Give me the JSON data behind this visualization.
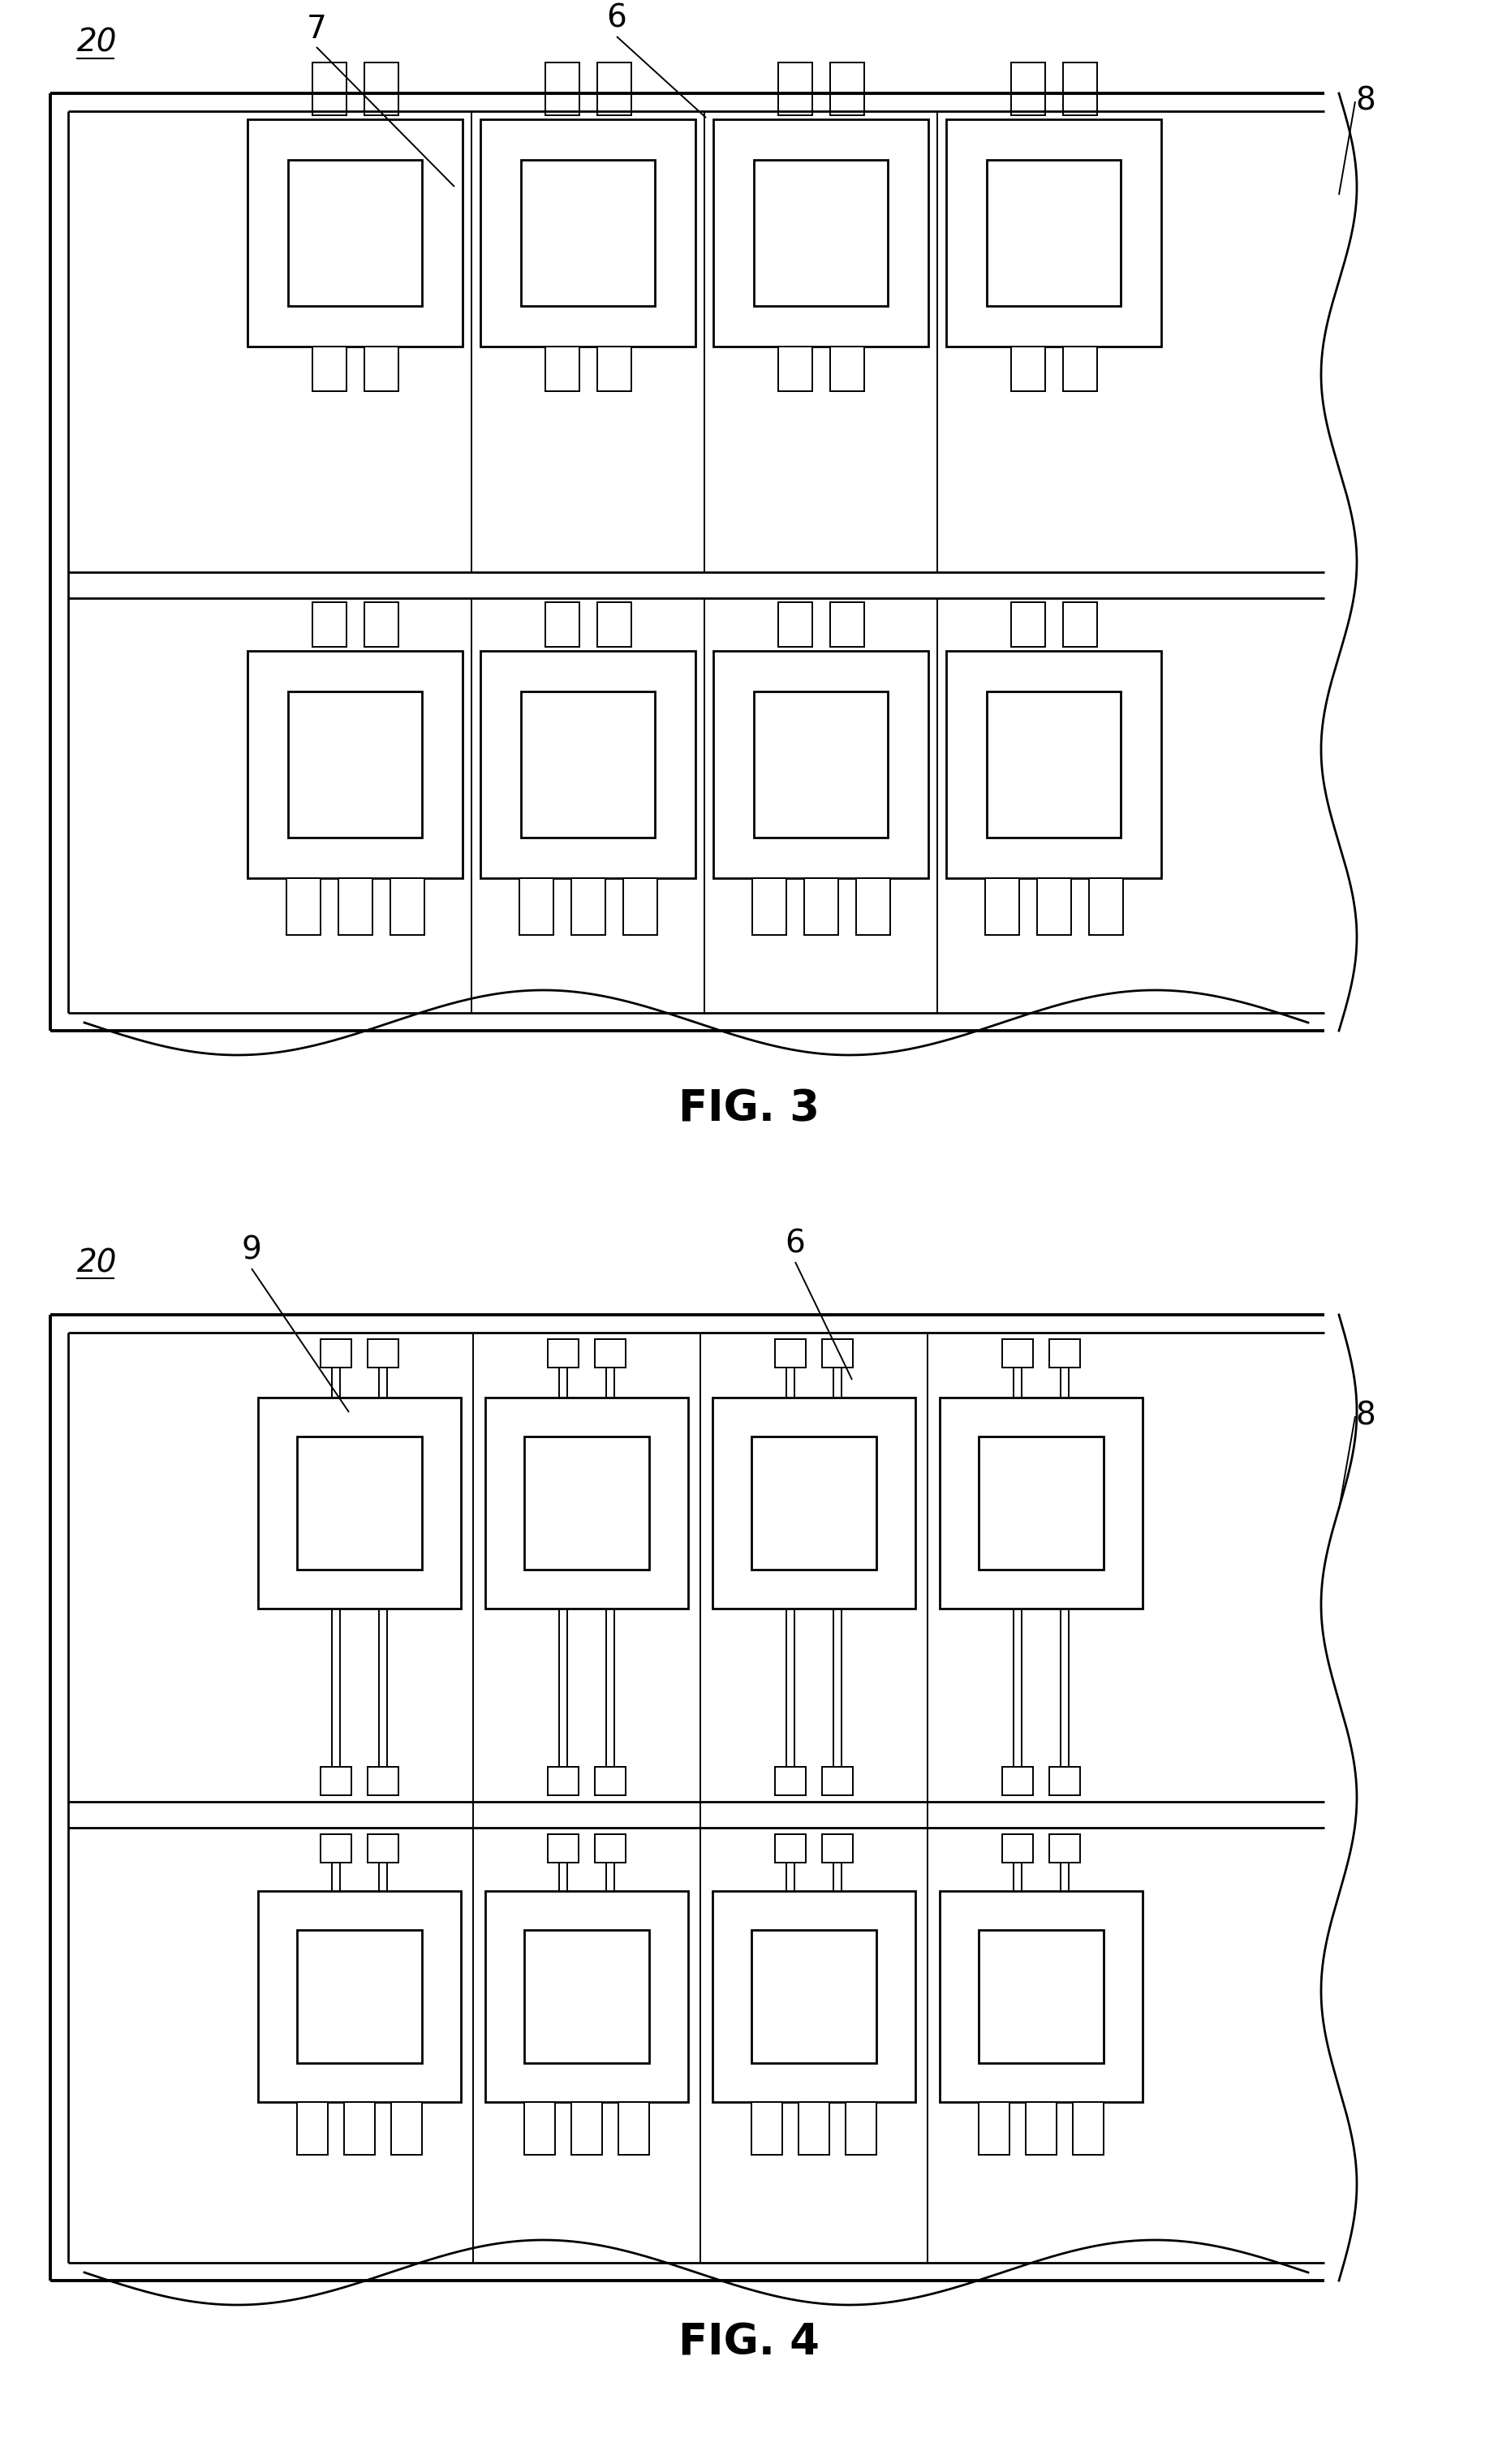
{
  "fig_width": 18.46,
  "fig_height": 30.36,
  "bg_color": "#ffffff",
  "line_color": "#000000",
  "lw_heavy": 2.8,
  "lw_med": 2.0,
  "lw_thin": 1.4,
  "fig3_label": "FIG. 3",
  "fig4_label": "FIG. 4",
  "label_20_1": "20",
  "label_7": "7",
  "label_6_1": "6",
  "label_8_1": "8",
  "label_20_2": "20",
  "label_9": "9",
  "label_6_2": "6",
  "label_8_2": "8",
  "fontsize_label": 28,
  "fontsize_fig": 38
}
